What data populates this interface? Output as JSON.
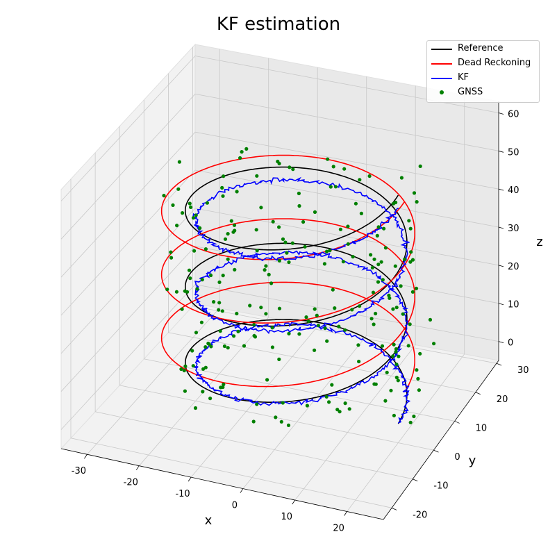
{
  "chart_data": {
    "type": "line",
    "title": "KF estimation",
    "xlabel": "x",
    "ylabel": "y",
    "zlabel": "z",
    "xlim": [
      -35,
      27
    ],
    "ylim": [
      -24,
      31
    ],
    "zlim": [
      -5,
      63
    ],
    "xticks": [
      "-30",
      "-20",
      "-10",
      "0",
      "10",
      "20"
    ],
    "yticks": [
      "-20",
      "-10",
      "0",
      "10",
      "20",
      "30"
    ],
    "zticks": [
      "0",
      "10",
      "20",
      "30",
      "40",
      "50",
      "60"
    ],
    "grid": true,
    "legend_position": "top-right",
    "series": [
      {
        "name": "Reference",
        "color": "#000000",
        "kind": "helix",
        "radius": 20,
        "center": [
          0,
          0
        ],
        "z_range": [
          0,
          60
        ],
        "turns": 3
      },
      {
        "name": "Dead Reckoning",
        "color": "#ff0000",
        "kind": "helix",
        "radius": 23,
        "center": [
          -6,
          10
        ],
        "z_range": [
          0,
          50
        ],
        "turns": 3
      },
      {
        "name": "KF",
        "color": "#0000ff",
        "kind": "helix-noisy",
        "radius": 19,
        "center": [
          1,
          0
        ],
        "z_range": [
          0,
          57
        ],
        "turns": 3
      },
      {
        "name": "GNSS",
        "color": "#008000",
        "kind": "scatter",
        "count": 220,
        "noise_xy": 4,
        "noise_z": 6
      }
    ]
  }
}
